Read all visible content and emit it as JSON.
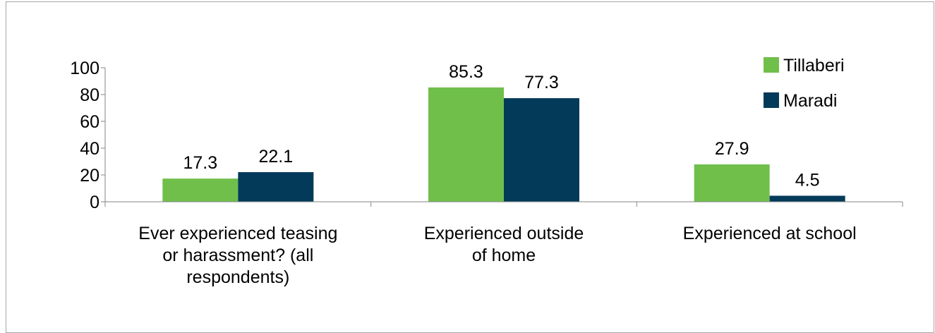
{
  "chart_data": {
    "type": "bar",
    "categories": [
      [
        "Ever experienced teasing",
        "or harassment? (all",
        "respondents)"
      ],
      [
        "Experienced outside",
        "of home"
      ],
      [
        "Experienced at school"
      ]
    ],
    "series": [
      {
        "name": "Tillaberi",
        "values": [
          17.3,
          85.3,
          27.9
        ],
        "color": "#70bf4b"
      },
      {
        "name": "Maradi",
        "values": [
          22.1,
          77.3,
          4.5
        ],
        "color": "#043a59"
      }
    ],
    "data_labels": [
      [
        "17.3",
        "85.3",
        "27.9"
      ],
      [
        "22.1",
        "77.3",
        "4.5"
      ]
    ],
    "ylim": [
      0,
      100
    ],
    "yticks": [
      "0",
      "20",
      "40",
      "60",
      "80",
      "100"
    ],
    "grid": false,
    "legend_position": "top-right"
  }
}
